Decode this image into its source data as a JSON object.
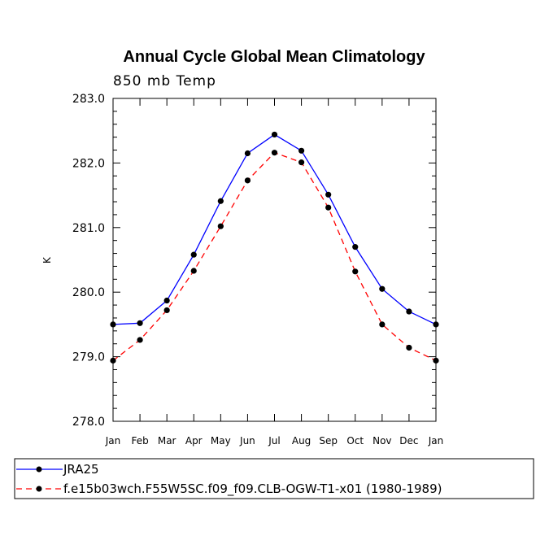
{
  "chart_data": {
    "type": "line",
    "title": "Annual Cycle Global Mean Climatology",
    "subtitle": "850 mb Temp",
    "ylabel": "K",
    "xlabel": "",
    "categories": [
      "Jan",
      "Feb",
      "Mar",
      "Apr",
      "May",
      "Jun",
      "Jul",
      "Aug",
      "Sep",
      "Oct",
      "Nov",
      "Dec",
      "Jan"
    ],
    "ylim": [
      278.0,
      283.0
    ],
    "yticks": [
      278.0,
      279.0,
      280.0,
      281.0,
      282.0,
      283.0
    ],
    "ytick_labels": [
      "278.0",
      "279.0",
      "280.0",
      "281.0",
      "282.0",
      "283.0"
    ],
    "series": [
      {
        "name": "JRA25",
        "color": "#0000ff",
        "dash": "solid",
        "values": [
          279.5,
          279.52,
          279.87,
          280.58,
          281.41,
          282.15,
          282.44,
          282.19,
          281.51,
          280.7,
          280.05,
          279.7,
          279.5
        ]
      },
      {
        "name": "f.e15b03wch.F55W5SC.f09_f09.CLB-OGW-T1-x01 (1980-1989)",
        "color": "#ff0000",
        "dash": "dashed",
        "values": [
          278.94,
          279.26,
          279.72,
          280.33,
          281.02,
          281.73,
          282.16,
          282.01,
          281.31,
          280.32,
          279.5,
          279.14,
          278.94
        ]
      }
    ],
    "legend_position": "bottom"
  }
}
